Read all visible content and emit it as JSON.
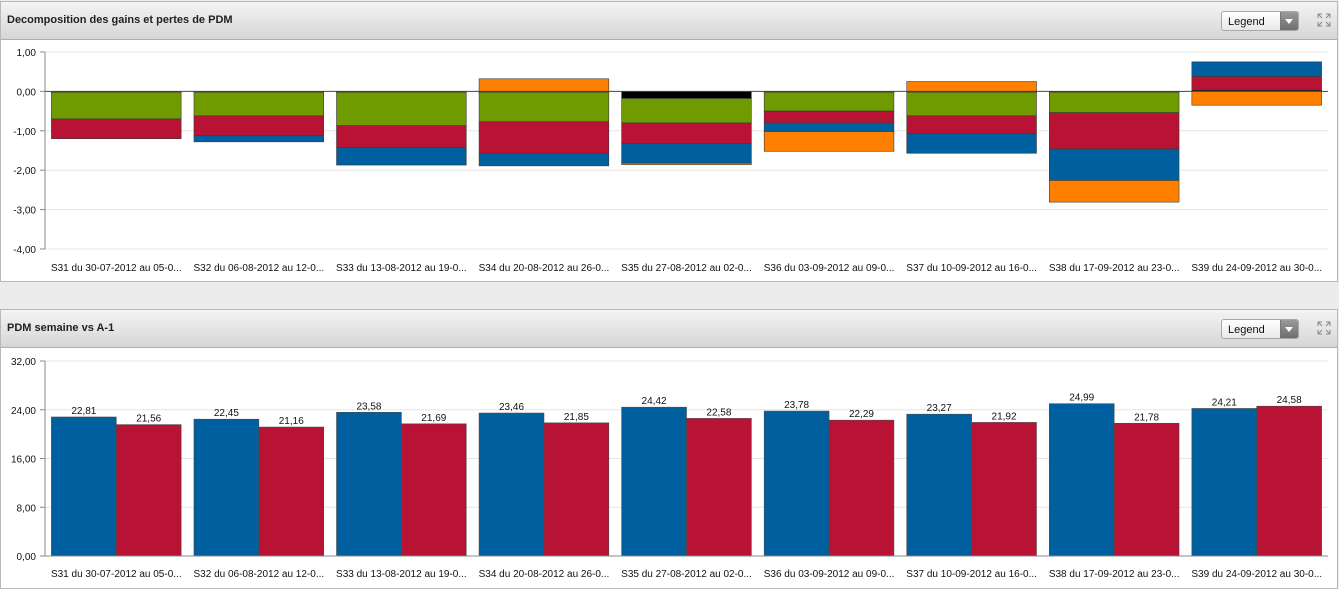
{
  "colors": {
    "blue": "#00609f",
    "red": "#b81234",
    "green": "#6f9a00",
    "orange": "#ff7f00"
  },
  "panels": [
    {
      "title": "Decomposition des gains et pertes de PDM",
      "legend_label": "Legend",
      "legend_icon": "resize-icon",
      "chart_data": {
        "type": "bar",
        "stacked": true,
        "categories": [
          "S31 du 30-07-2012 au 05-0...",
          "S32 du 06-08-2012 au 12-0...",
          "S33 du 13-08-2012 au 19-0...",
          "S34 du 20-08-2012 au 26-0...",
          "S35 du 27-08-2012 au 02-0...",
          "S36 du 03-09-2012 au 09-0...",
          "S37 du 10-09-2012 au 16-0...",
          "S38 du 17-09-2012 au 23-0...",
          "S39 du 24-09-2012 au 30-0..."
        ],
        "series": [
          {
            "color": "#000000",
            "values": [
              -0.02,
              -0.02,
              -0.02,
              -0.02,
              -0.18,
              -0.02,
              -0.02,
              -0.02,
              0.03
            ]
          },
          {
            "color": "#6f9a00",
            "values": [
              -0.68,
              -0.6,
              -0.85,
              -0.75,
              -0.62,
              -0.48,
              -0.6,
              -0.52,
              0
            ]
          },
          {
            "color": "#b81234",
            "values": [
              -0.5,
              -0.5,
              -0.55,
              -0.8,
              -0.52,
              -0.3,
              -0.45,
              -0.92,
              0.35
            ]
          },
          {
            "color": "#00609f",
            "values": [
              0,
              -0.16,
              -0.45,
              -0.32,
              -0.5,
              -0.22,
              -0.5,
              -0.8,
              0.37
            ]
          },
          {
            "color": "#ff7f00",
            "values": [
              0,
              0,
              0,
              0.32,
              -0.02,
              -0.5,
              0.25,
              -0.55,
              -0.35
            ]
          }
        ],
        "ylim": [
          -4,
          1
        ],
        "yticks": [
          "1,00",
          "0,00",
          "-1,00",
          "-2,00",
          "-3,00",
          "-4,00"
        ],
        "ytick_values": [
          1,
          0,
          -1,
          -2,
          -3,
          -4
        ]
      }
    },
    {
      "title": "PDM semaine vs A-1",
      "legend_label": "Legend",
      "legend_icon": "resize-icon",
      "chart_data": {
        "type": "bar",
        "categories": [
          "S31 du 30-07-2012 au 05-0...",
          "S32 du 06-08-2012 au 12-0...",
          "S33 du 13-08-2012 au 19-0...",
          "S34 du 20-08-2012 au 26-0...",
          "S35 du 27-08-2012 au 02-0...",
          "S36 du 03-09-2012 au 09-0...",
          "S37 du 10-09-2012 au 16-0...",
          "S38 du 17-09-2012 au 23-0...",
          "S39 du 24-09-2012 au 30-0..."
        ],
        "series": [
          {
            "color": "#00609f",
            "values": [
              22.81,
              22.45,
              23.58,
              23.46,
              24.42,
              23.78,
              23.27,
              24.99,
              24.21
            ],
            "labels": [
              "22,81",
              "22,45",
              "23,58",
              "23,46",
              "24,42",
              "23,78",
              "23,27",
              "24,99",
              "24,21"
            ]
          },
          {
            "color": "#b81234",
            "values": [
              21.56,
              21.16,
              21.69,
              21.85,
              22.58,
              22.29,
              21.92,
              21.78,
              24.58
            ],
            "labels": [
              "21,56",
              "21,16",
              "21,69",
              "21,85",
              "22,58",
              "22,29",
              "21,92",
              "21,78",
              "24,58"
            ]
          }
        ],
        "ylim": [
          0,
          32
        ],
        "yticks": [
          "32,00",
          "24,00",
          "16,00",
          "8,00",
          "0,00"
        ],
        "ytick_values": [
          32,
          24,
          16,
          8,
          0
        ]
      }
    }
  ]
}
